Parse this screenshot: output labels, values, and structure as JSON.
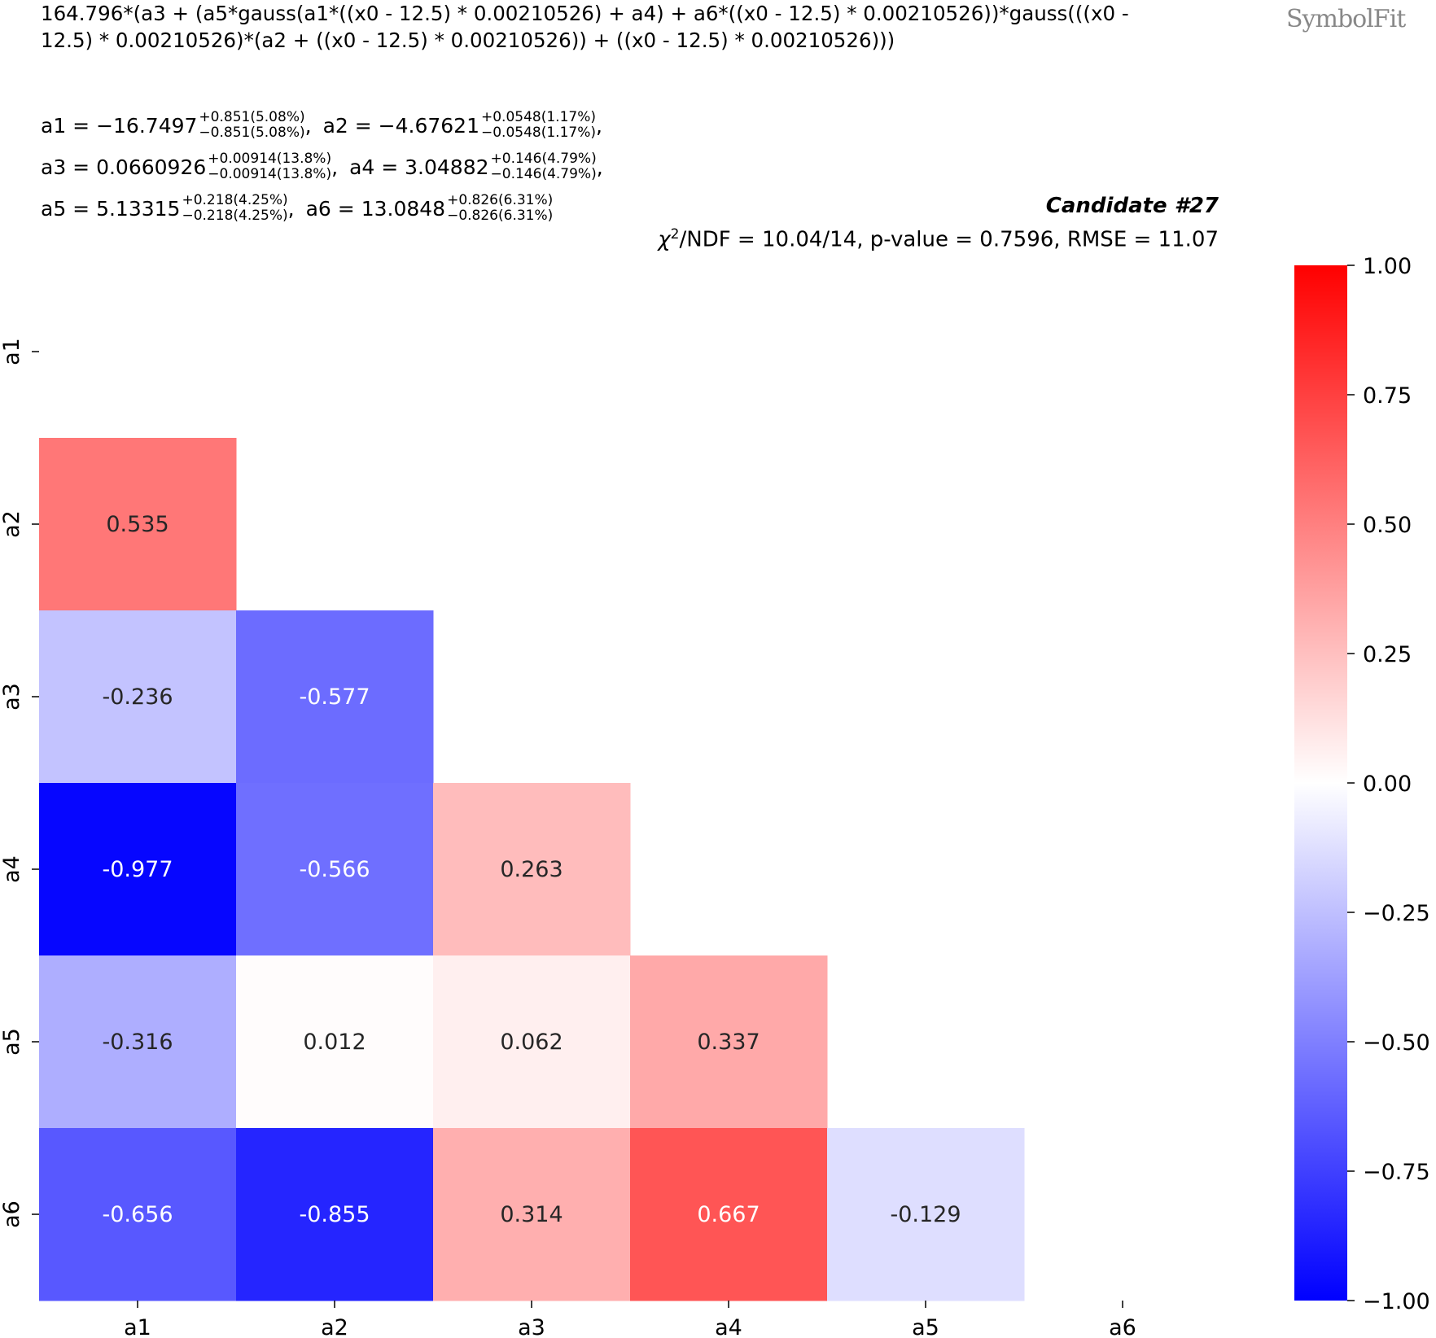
{
  "header": {
    "formula": "164.796*(a3 + (a5*gauss(a1*((x0 - 12.5) * 0.00210526) + a4) + a6*((x0 - 12.5) * 0.00210526))*gauss(((x0 - 12.5) * 0.00210526)*(a2 + ((x0 - 12.5) * 0.00210526)) + ((x0 - 12.5) * 0.00210526)))",
    "params": [
      {
        "name": "a1",
        "value": "−16.7497",
        "plus": "+0.851(5.08%)",
        "minus": "−0.851(5.08%)"
      },
      {
        "name": "a2",
        "value": "−4.67621",
        "plus": "+0.0548(1.17%)",
        "minus": "−0.0548(1.17%)"
      },
      {
        "name": "a3",
        "value": "0.0660926",
        "plus": "+0.00914(13.8%)",
        "minus": "−0.00914(13.8%)"
      },
      {
        "name": "a4",
        "value": "3.04882",
        "plus": "+0.146(4.79%)",
        "minus": "−0.146(4.79%)"
      },
      {
        "name": "a5",
        "value": "5.13315",
        "plus": "+0.218(4.25%)",
        "minus": "−0.218(4.25%)"
      },
      {
        "name": "a6",
        "value": "13.0848",
        "plus": "+0.826(6.31%)",
        "minus": "−0.826(6.31%)"
      }
    ],
    "candidate": "Candidate #27",
    "stats": "/NDF = 10.04/14, p-value = 0.7596, RMSE = 11.07",
    "chi_symbol": "χ",
    "logo": "SymbolFit"
  },
  "chart_data": {
    "type": "heatmap",
    "title": "",
    "x_labels": [
      "a1",
      "a2",
      "a3",
      "a4",
      "a5",
      "a6"
    ],
    "y_labels": [
      "a1",
      "a2",
      "a3",
      "a4",
      "a5",
      "a6"
    ],
    "mask": "upper triangle incl. diagonal",
    "colormap": "bwr",
    "vmin": -1.0,
    "vmax": 1.0,
    "colorbar_ticks": [
      "1.00",
      "0.75",
      "0.50",
      "0.25",
      "0.00",
      "−0.25",
      "−0.50",
      "−0.75",
      "−1.00"
    ],
    "colorbar_tick_values": [
      1.0,
      0.75,
      0.5,
      0.25,
      0.0,
      -0.25,
      -0.5,
      -0.75,
      -1.0
    ],
    "values": [
      [
        null,
        null,
        null,
        null,
        null,
        null
      ],
      [
        0.535,
        null,
        null,
        null,
        null,
        null
      ],
      [
        -0.236,
        -0.577,
        null,
        null,
        null,
        null
      ],
      [
        -0.977,
        -0.566,
        0.263,
        null,
        null,
        null
      ],
      [
        -0.316,
        0.012,
        0.062,
        0.337,
        null,
        null
      ],
      [
        -0.656,
        -0.855,
        0.314,
        0.667,
        -0.129,
        null
      ]
    ],
    "labels": [
      [
        null,
        null,
        null,
        null,
        null,
        null
      ],
      [
        "0.535",
        null,
        null,
        null,
        null,
        null
      ],
      [
        "-0.236",
        "-0.577",
        null,
        null,
        null,
        null
      ],
      [
        "-0.977",
        "-0.566",
        "0.263",
        null,
        null,
        null
      ],
      [
        "-0.316",
        "0.012",
        "0.062",
        "0.337",
        null,
        null
      ],
      [
        "-0.656",
        "-0.855",
        "0.314",
        "0.667",
        "-0.129",
        null
      ]
    ]
  }
}
